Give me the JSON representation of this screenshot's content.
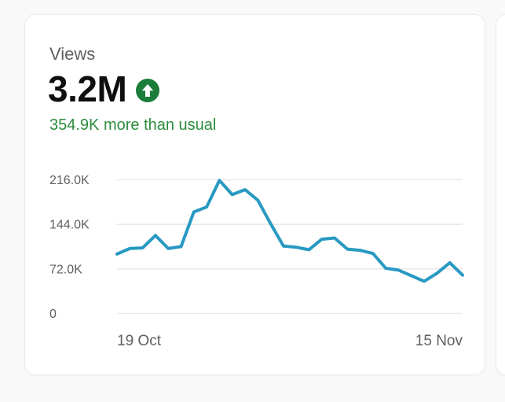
{
  "page": {
    "background": "#f9f9f9"
  },
  "card": {
    "title": "Views",
    "metric_value": "3.2M",
    "trend_direction": "up",
    "delta_text": "354.9K more than usual"
  },
  "colors": {
    "line": "#2899c2",
    "grid": "#e9e9e9",
    "tick_text": "#606060",
    "delta_green": "#2d8b3e",
    "badge_green": "#1a7d39",
    "metric_black": "#0f0f0f",
    "title_gray": "#606060",
    "card_bg": "#ffffff",
    "page_bg": "#f9f9f9"
  },
  "chart_data": {
    "type": "line",
    "title": "Views",
    "xlabel": "",
    "ylabel": "",
    "x_start": "19 Oct",
    "x_end": "15 Nov",
    "x_interval": "daily",
    "ylim": [
      0,
      216000
    ],
    "grid": true,
    "legend": "none",
    "yticks": [
      {
        "value": 216000,
        "label": "216.0K"
      },
      {
        "value": 144000,
        "label": "144.0K"
      },
      {
        "value": 72000,
        "label": "72.0K"
      },
      {
        "value": 0,
        "label": "0"
      }
    ],
    "xticks": [
      {
        "label": "19 Oct",
        "position": "start"
      },
      {
        "label": "15 Nov",
        "position": "end"
      }
    ],
    "series": [
      {
        "name": "Views",
        "values": [
          96000,
          105000,
          106000,
          126000,
          105000,
          108000,
          164000,
          172000,
          215000,
          192000,
          200000,
          183000,
          145000,
          109000,
          107000,
          103000,
          120000,
          122000,
          104000,
          102000,
          97000,
          73000,
          70000,
          61000,
          52000,
          65000,
          82000,
          62000
        ]
      }
    ]
  }
}
